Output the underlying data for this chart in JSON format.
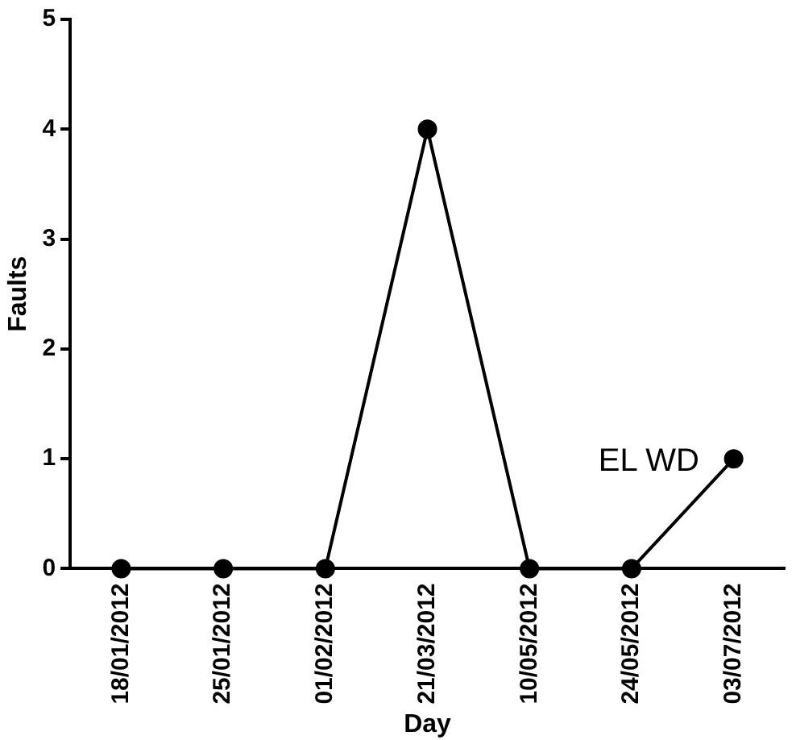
{
  "chart_data": {
    "type": "line",
    "xlabel": "Day",
    "ylabel": "Faults",
    "categories": [
      "18/01/2012",
      "25/01/2012",
      "01/02/2012",
      "21/03/2012",
      "10/05/2012",
      "24/05/2012",
      "03/07/2012"
    ],
    "series": [
      {
        "color": "#000000",
        "values": [
          0,
          0,
          0,
          4,
          0,
          0,
          1
        ]
      }
    ],
    "ylim": [
      0,
      5
    ],
    "yticks": [
      0,
      1,
      2,
      3,
      4,
      5
    ],
    "grid": false,
    "legend": false,
    "marker": "circle",
    "line_style": "solid",
    "annotations": [
      "EL WD"
    ]
  }
}
